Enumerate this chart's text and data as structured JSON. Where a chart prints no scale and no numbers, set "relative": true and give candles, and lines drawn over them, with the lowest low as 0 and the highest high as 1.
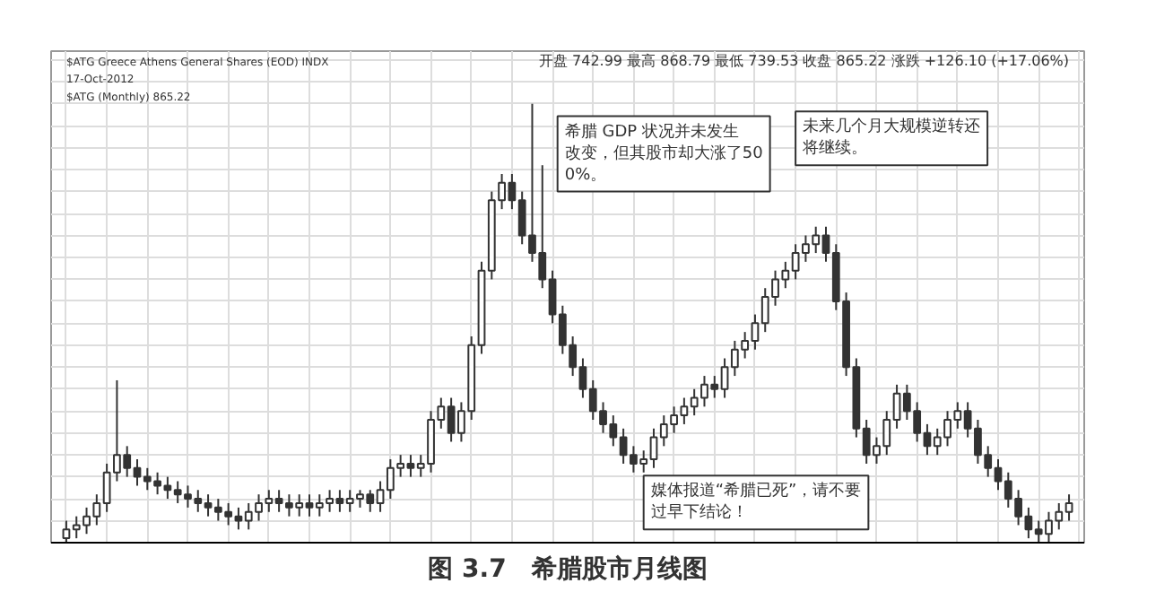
{
  "chart_data": {
    "type": "candlestick",
    "title": "图 3.7　希腊股市月线图",
    "relative": true,
    "grid": true,
    "color": "#333333",
    "categories": [
      null,
      null,
      null,
      null,
      null,
      null,
      null,
      null,
      null,
      null,
      null,
      null,
      null,
      null,
      null,
      null,
      null,
      null,
      null,
      null,
      null,
      null,
      null,
      null,
      null,
      null,
      null,
      null,
      null,
      null,
      null,
      null,
      null,
      null,
      null,
      null,
      null,
      null,
      null,
      null,
      null,
      null,
      null,
      null,
      null,
      null,
      null,
      null,
      null,
      null,
      null,
      null,
      null,
      null,
      null,
      null,
      null,
      null,
      null,
      null,
      null,
      null,
      null,
      null,
      null,
      null,
      null,
      null,
      null,
      null,
      null,
      null,
      null,
      null,
      null,
      null,
      null,
      null,
      null,
      null,
      null,
      null,
      null,
      null,
      null,
      null,
      null,
      null,
      null,
      null,
      null,
      null,
      null,
      null,
      null,
      null,
      null,
      null,
      null,
      null
    ],
    "ohlc": [
      [
        0.01,
        0.05,
        0,
        0.03
      ],
      [
        0.03,
        0.06,
        0.01,
        0.04
      ],
      [
        0.04,
        0.08,
        0.02,
        0.06
      ],
      [
        0.06,
        0.11,
        0.04,
        0.09
      ],
      [
        0.09,
        0.18,
        0.07,
        0.16
      ],
      [
        0.16,
        0.37,
        0.14,
        0.2
      ],
      [
        0.2,
        0.22,
        0.15,
        0.17
      ],
      [
        0.17,
        0.19,
        0.13,
        0.15
      ],
      [
        0.15,
        0.17,
        0.12,
        0.14
      ],
      [
        0.14,
        0.16,
        0.11,
        0.13
      ],
      [
        0.13,
        0.15,
        0.1,
        0.12
      ],
      [
        0.12,
        0.14,
        0.09,
        0.11
      ],
      [
        0.11,
        0.13,
        0.08,
        0.1
      ],
      [
        0.1,
        0.12,
        0.07,
        0.09
      ],
      [
        0.09,
        0.11,
        0.06,
        0.08
      ],
      [
        0.08,
        0.1,
        0.05,
        0.07
      ],
      [
        0.07,
        0.09,
        0.04,
        0.06
      ],
      [
        0.06,
        0.08,
        0.03,
        0.05
      ],
      [
        0.05,
        0.09,
        0.03,
        0.07
      ],
      [
        0.07,
        0.11,
        0.05,
        0.09
      ],
      [
        0.09,
        0.12,
        0.07,
        0.1
      ],
      [
        0.1,
        0.12,
        0.07,
        0.09
      ],
      [
        0.09,
        0.11,
        0.06,
        0.08
      ],
      [
        0.08,
        0.11,
        0.06,
        0.09
      ],
      [
        0.09,
        0.11,
        0.06,
        0.08
      ],
      [
        0.08,
        0.11,
        0.06,
        0.09
      ],
      [
        0.09,
        0.12,
        0.07,
        0.1
      ],
      [
        0.1,
        0.12,
        0.07,
        0.09
      ],
      [
        0.09,
        0.12,
        0.07,
        0.1
      ],
      [
        0.1,
        0.12,
        0.08,
        0.11
      ],
      [
        0.11,
        0.12,
        0.07,
        0.09
      ],
      [
        0.09,
        0.14,
        0.07,
        0.12
      ],
      [
        0.12,
        0.19,
        0.1,
        0.17
      ],
      [
        0.17,
        0.2,
        0.15,
        0.18
      ],
      [
        0.18,
        0.2,
        0.15,
        0.17
      ],
      [
        0.17,
        0.2,
        0.15,
        0.18
      ],
      [
        0.18,
        0.3,
        0.16,
        0.28
      ],
      [
        0.28,
        0.33,
        0.26,
        0.31
      ],
      [
        0.31,
        0.33,
        0.23,
        0.25
      ],
      [
        0.25,
        0.32,
        0.23,
        0.3
      ],
      [
        0.3,
        0.47,
        0.28,
        0.45
      ],
      [
        0.45,
        0.64,
        0.43,
        0.62
      ],
      [
        0.62,
        0.8,
        0.6,
        0.78
      ],
      [
        0.78,
        0.84,
        0.76,
        0.82
      ],
      [
        0.82,
        0.84,
        0.76,
        0.78
      ],
      [
        0.78,
        0.8,
        0.68,
        0.7
      ],
      [
        0.7,
        1,
        0.64,
        0.66
      ],
      [
        0.66,
        0.86,
        0.58,
        0.6
      ],
      [
        0.6,
        0.62,
        0.5,
        0.52
      ],
      [
        0.52,
        0.54,
        0.43,
        0.45
      ],
      [
        0.45,
        0.47,
        0.38,
        0.4
      ],
      [
        0.4,
        0.42,
        0.33,
        0.35
      ],
      [
        0.35,
        0.37,
        0.28,
        0.3
      ],
      [
        0.3,
        0.32,
        0.25,
        0.27
      ],
      [
        0.27,
        0.29,
        0.22,
        0.24
      ],
      [
        0.24,
        0.26,
        0.18,
        0.2
      ],
      [
        0.2,
        0.22,
        0.16,
        0.18
      ],
      [
        0.18,
        0.21,
        0.16,
        0.19
      ],
      [
        0.19,
        0.26,
        0.17,
        0.24
      ],
      [
        0.24,
        0.29,
        0.22,
        0.27
      ],
      [
        0.27,
        0.31,
        0.25,
        0.29
      ],
      [
        0.29,
        0.33,
        0.27,
        0.31
      ],
      [
        0.31,
        0.35,
        0.29,
        0.33
      ],
      [
        0.33,
        0.38,
        0.31,
        0.36
      ],
      [
        0.36,
        0.38,
        0.33,
        0.35
      ],
      [
        0.35,
        0.42,
        0.33,
        0.4
      ],
      [
        0.4,
        0.46,
        0.38,
        0.44
      ],
      [
        0.44,
        0.48,
        0.42,
        0.46
      ],
      [
        0.46,
        0.52,
        0.44,
        0.5
      ],
      [
        0.5,
        0.58,
        0.48,
        0.56
      ],
      [
        0.56,
        0.62,
        0.54,
        0.6
      ],
      [
        0.6,
        0.64,
        0.58,
        0.62
      ],
      [
        0.62,
        0.68,
        0.6,
        0.66
      ],
      [
        0.66,
        0.7,
        0.64,
        0.68
      ],
      [
        0.68,
        0.72,
        0.66,
        0.7
      ],
      [
        0.7,
        0.72,
        0.64,
        0.66
      ],
      [
        0.66,
        0.68,
        0.53,
        0.55
      ],
      [
        0.55,
        0.57,
        0.38,
        0.4
      ],
      [
        0.4,
        0.42,
        0.24,
        0.26
      ],
      [
        0.26,
        0.28,
        0.18,
        0.2
      ],
      [
        0.2,
        0.24,
        0.18,
        0.22
      ],
      [
        0.22,
        0.3,
        0.2,
        0.28
      ],
      [
        0.28,
        0.36,
        0.26,
        0.34
      ],
      [
        0.34,
        0.36,
        0.28,
        0.3
      ],
      [
        0.3,
        0.32,
        0.23,
        0.25
      ],
      [
        0.25,
        0.27,
        0.2,
        0.22
      ],
      [
        0.22,
        0.26,
        0.2,
        0.24
      ],
      [
        0.24,
        0.3,
        0.22,
        0.28
      ],
      [
        0.28,
        0.32,
        0.26,
        0.3
      ],
      [
        0.3,
        0.32,
        0.24,
        0.26
      ],
      [
        0.26,
        0.28,
        0.18,
        0.2
      ],
      [
        0.2,
        0.22,
        0.15,
        0.17
      ],
      [
        0.17,
        0.19,
        0.12,
        0.14
      ],
      [
        0.14,
        0.16,
        0.08,
        0.1
      ],
      [
        0.1,
        0.12,
        0.04,
        0.06
      ],
      [
        0.06,
        0.08,
        0.01,
        0.03
      ],
      [
        0.03,
        0.05,
        0,
        0.02
      ],
      [
        0.02,
        0.07,
        0,
        0.05
      ],
      [
        0.05,
        0.09,
        0.03,
        0.07
      ],
      [
        0.07,
        0.11,
        0.05,
        0.09
      ]
    ],
    "annotations": [
      "$ATG Greece Athens General Shares (EOD) INDX",
      "17-Oct-2012",
      "$ATG (Monthly) 865.22",
      "开盘 742.99 最高 868.79 最低 739.53 收盘 865.22 涨跌 +126.10 (+17.06%)",
      "希腊 GDP 状况并未发生改变，但其股市却大涨了500%。",
      "未来几个月大规模逆转还将继续。",
      "媒体报道“希腊已死”，请不要过早下结论！"
    ]
  }
}
